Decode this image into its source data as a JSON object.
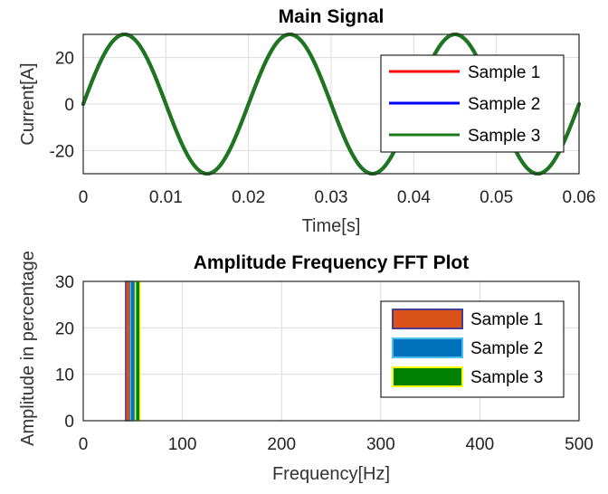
{
  "chart_data": [
    {
      "type": "line",
      "title": "Main Signal",
      "xlabel": "Time[s]",
      "ylabel": "Current[A]",
      "xlim": [
        0,
        0.06
      ],
      "ylim": [
        -30,
        30
      ],
      "xticks": [
        "0",
        "0.01",
        "0.02",
        "0.03",
        "0.04",
        "0.05",
        "0.06"
      ],
      "yticks": [
        "-20",
        "0",
        "20"
      ],
      "grid": true,
      "legend_position": "right",
      "signal": {
        "amplitude": 30,
        "frequency_hz": 50,
        "phase": 0
      },
      "series": [
        {
          "name": "Sample 1",
          "color": "#ff0000",
          "x_range": [
            0,
            0.06
          ]
        },
        {
          "name": "Sample 2",
          "color": "#0000ff",
          "x_range": [
            0,
            0.06
          ]
        },
        {
          "name": "Sample 3",
          "color": "#1a7a1a",
          "x_range": [
            0,
            0.06
          ]
        }
      ]
    },
    {
      "type": "bar",
      "title": "Amplitude Frequency FFT Plot",
      "xlabel": "Frequency[Hz]",
      "ylabel": "Amplitude in percentage",
      "xlim": [
        0,
        500
      ],
      "ylim": [
        0,
        30
      ],
      "xticks": [
        "0",
        "100",
        "200",
        "300",
        "400",
        "500"
      ],
      "yticks": [
        "0",
        "10",
        "20",
        "30"
      ],
      "grid": true,
      "legend_position": "right",
      "series": [
        {
          "name": "Sample 1",
          "x": 45,
          "value": 30,
          "fill": "#d95319",
          "edge": "#4b3b8f"
        },
        {
          "name": "Sample 2",
          "x": 50,
          "value": 30,
          "fill": "#0072bd",
          "edge": "#4dbeee"
        },
        {
          "name": "Sample 3",
          "x": 55,
          "value": 30,
          "fill": "#008000",
          "edge": "#ffff00"
        }
      ]
    }
  ]
}
